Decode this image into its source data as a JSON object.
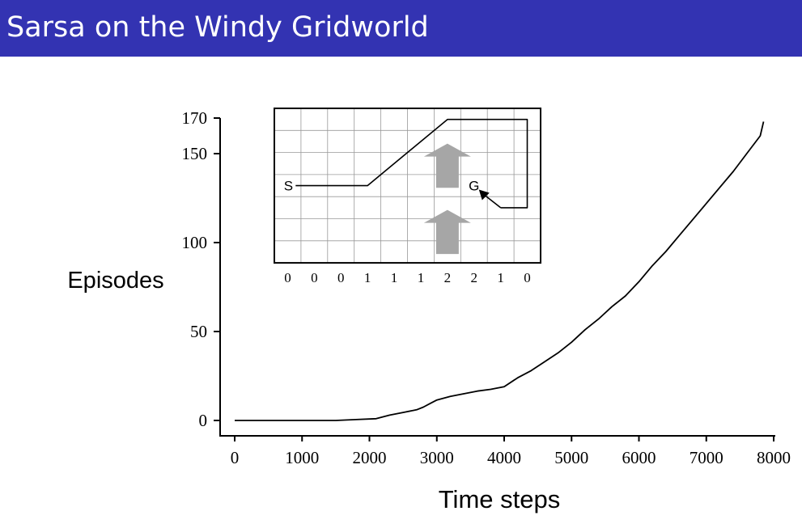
{
  "slide": {
    "title": "Sarsa on the Windy Gridworld",
    "header_color": "#3333b2"
  },
  "chart_data": [
    {
      "type": "line",
      "title": "",
      "xlabel": "Time steps",
      "ylabel": "Episodes",
      "xlim": [
        0,
        8000
      ],
      "ylim": [
        0,
        170
      ],
      "xticks": [
        0,
        1000,
        2000,
        3000,
        4000,
        5000,
        6000,
        7000,
        8000
      ],
      "xtick_labels": [
        "0",
        "1000",
        "2000",
        "3000",
        "4000",
        "5000",
        "6000",
        "7000",
        "8000"
      ],
      "yticks": [
        0,
        50,
        100,
        150,
        170
      ],
      "ytick_labels": [
        "0",
        "50",
        "100",
        "150",
        "170"
      ],
      "grid": false,
      "series": [
        {
          "x": [
            0,
            500,
            1000,
            1500,
            1800,
            2100,
            2300,
            2500,
            2700,
            2800,
            2900,
            3000,
            3100,
            3200,
            3400,
            3600,
            3800,
            4000,
            4200,
            4400,
            4600,
            4800,
            5000,
            5200,
            5400,
            5600,
            5800,
            6000,
            6200,
            6400,
            6600,
            6800,
            7000,
            7200,
            7400,
            7600,
            7800,
            7850
          ],
          "y": [
            0,
            0,
            0,
            0,
            0.5,
            1,
            3,
            4.5,
            6,
            7.5,
            9.5,
            11.5,
            12.5,
            13.5,
            15,
            16.5,
            17.5,
            19,
            24,
            28,
            33,
            38,
            44,
            51,
            57,
            64,
            70,
            78,
            87,
            95,
            104,
            113,
            122,
            131,
            140,
            150,
            160,
            168
          ]
        }
      ]
    },
    {
      "type": "diagram",
      "wind_strength": [
        "0",
        "0",
        "0",
        "1",
        "1",
        "1",
        "2",
        "2",
        "1",
        "0"
      ],
      "start_label": "S",
      "goal_label": "G",
      "wind_arrow_color": "#a6a6a6"
    }
  ]
}
